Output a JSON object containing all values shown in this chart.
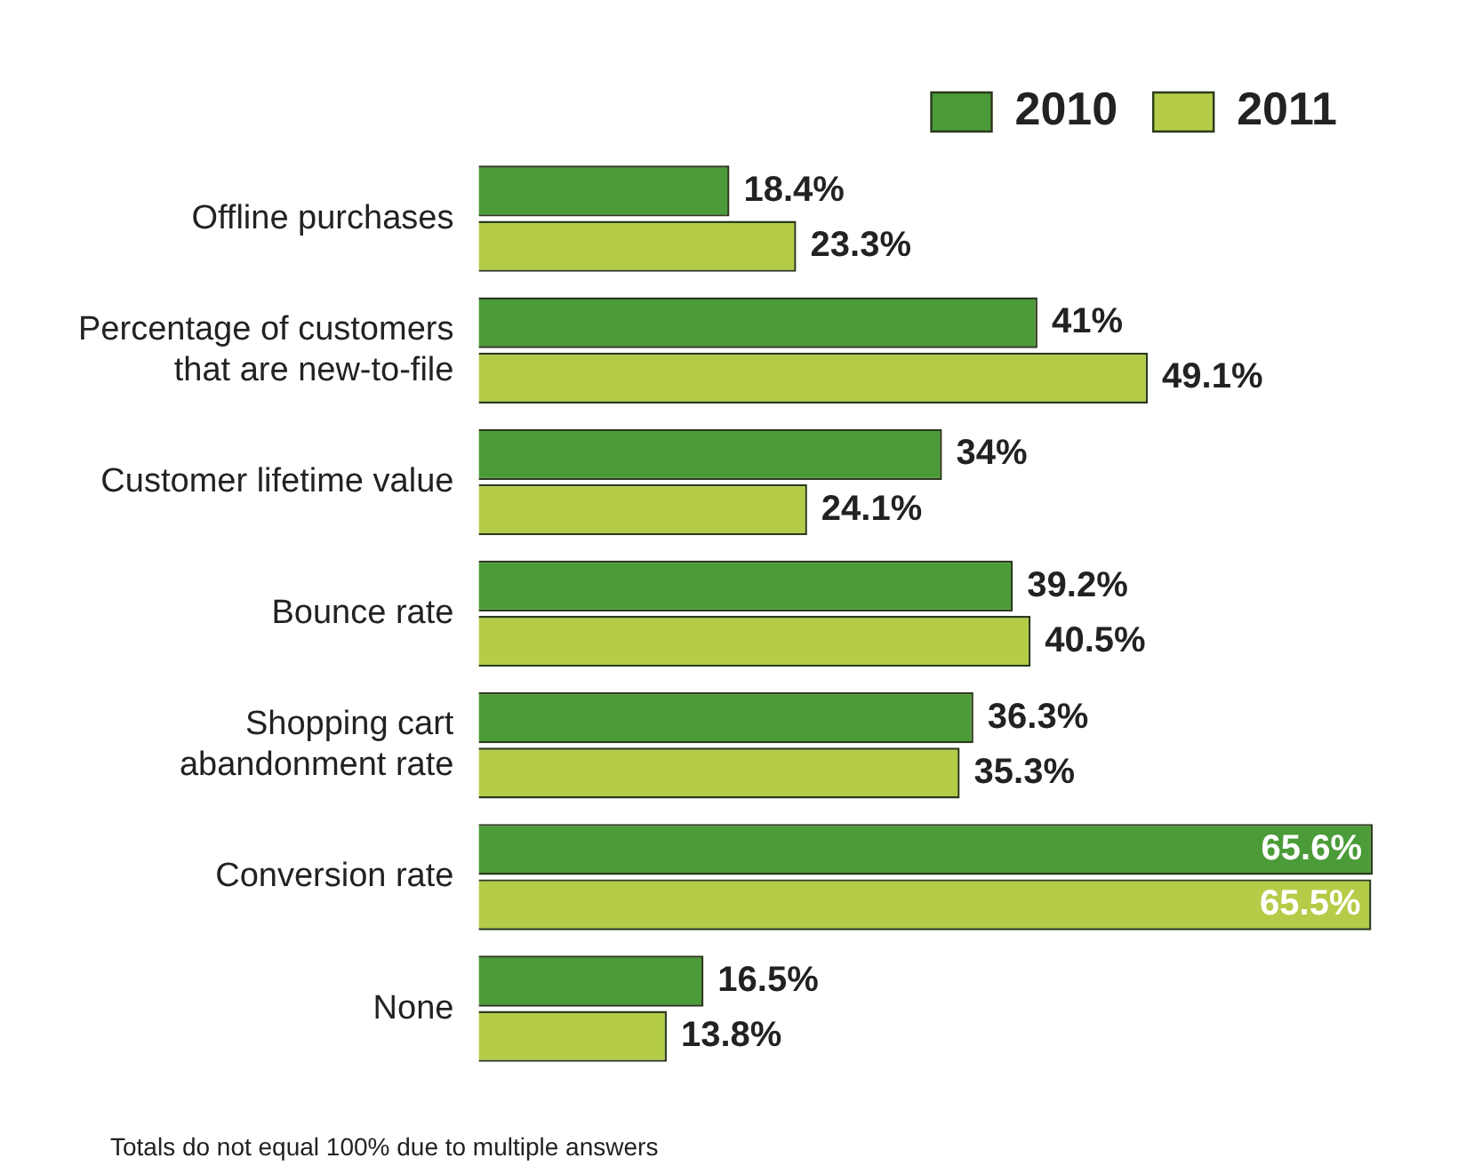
{
  "chart_data": {
    "type": "bar",
    "orientation": "horizontal",
    "categories": [
      "Offline purchases",
      "Percentage of customers\nthat are new-to-file",
      "Customer lifetime value",
      "Bounce rate",
      "Shopping cart\nabandonment rate",
      "Conversion rate",
      "None"
    ],
    "series": [
      {
        "name": "2010",
        "color": "#4b9b38",
        "values": [
          18.4,
          41,
          34,
          39.2,
          36.3,
          65.6,
          16.5
        ],
        "value_labels": [
          "18.4%",
          "41%",
          "34%",
          "39.2%",
          "36.3%",
          "65.6%",
          "16.5%"
        ]
      },
      {
        "name": "2011",
        "color": "#b4cc47",
        "values": [
          23.3,
          49.1,
          24.1,
          40.5,
          35.3,
          65.5,
          13.8
        ],
        "value_labels": [
          "23.3%",
          "49.1%",
          "24.1%",
          "40.5%",
          "35.3%",
          "65.5%",
          "13.8%"
        ]
      }
    ],
    "legend": "top right",
    "grid": false,
    "annotations": [
      "Totals do not equal 100% due to multiple answers"
    ]
  }
}
